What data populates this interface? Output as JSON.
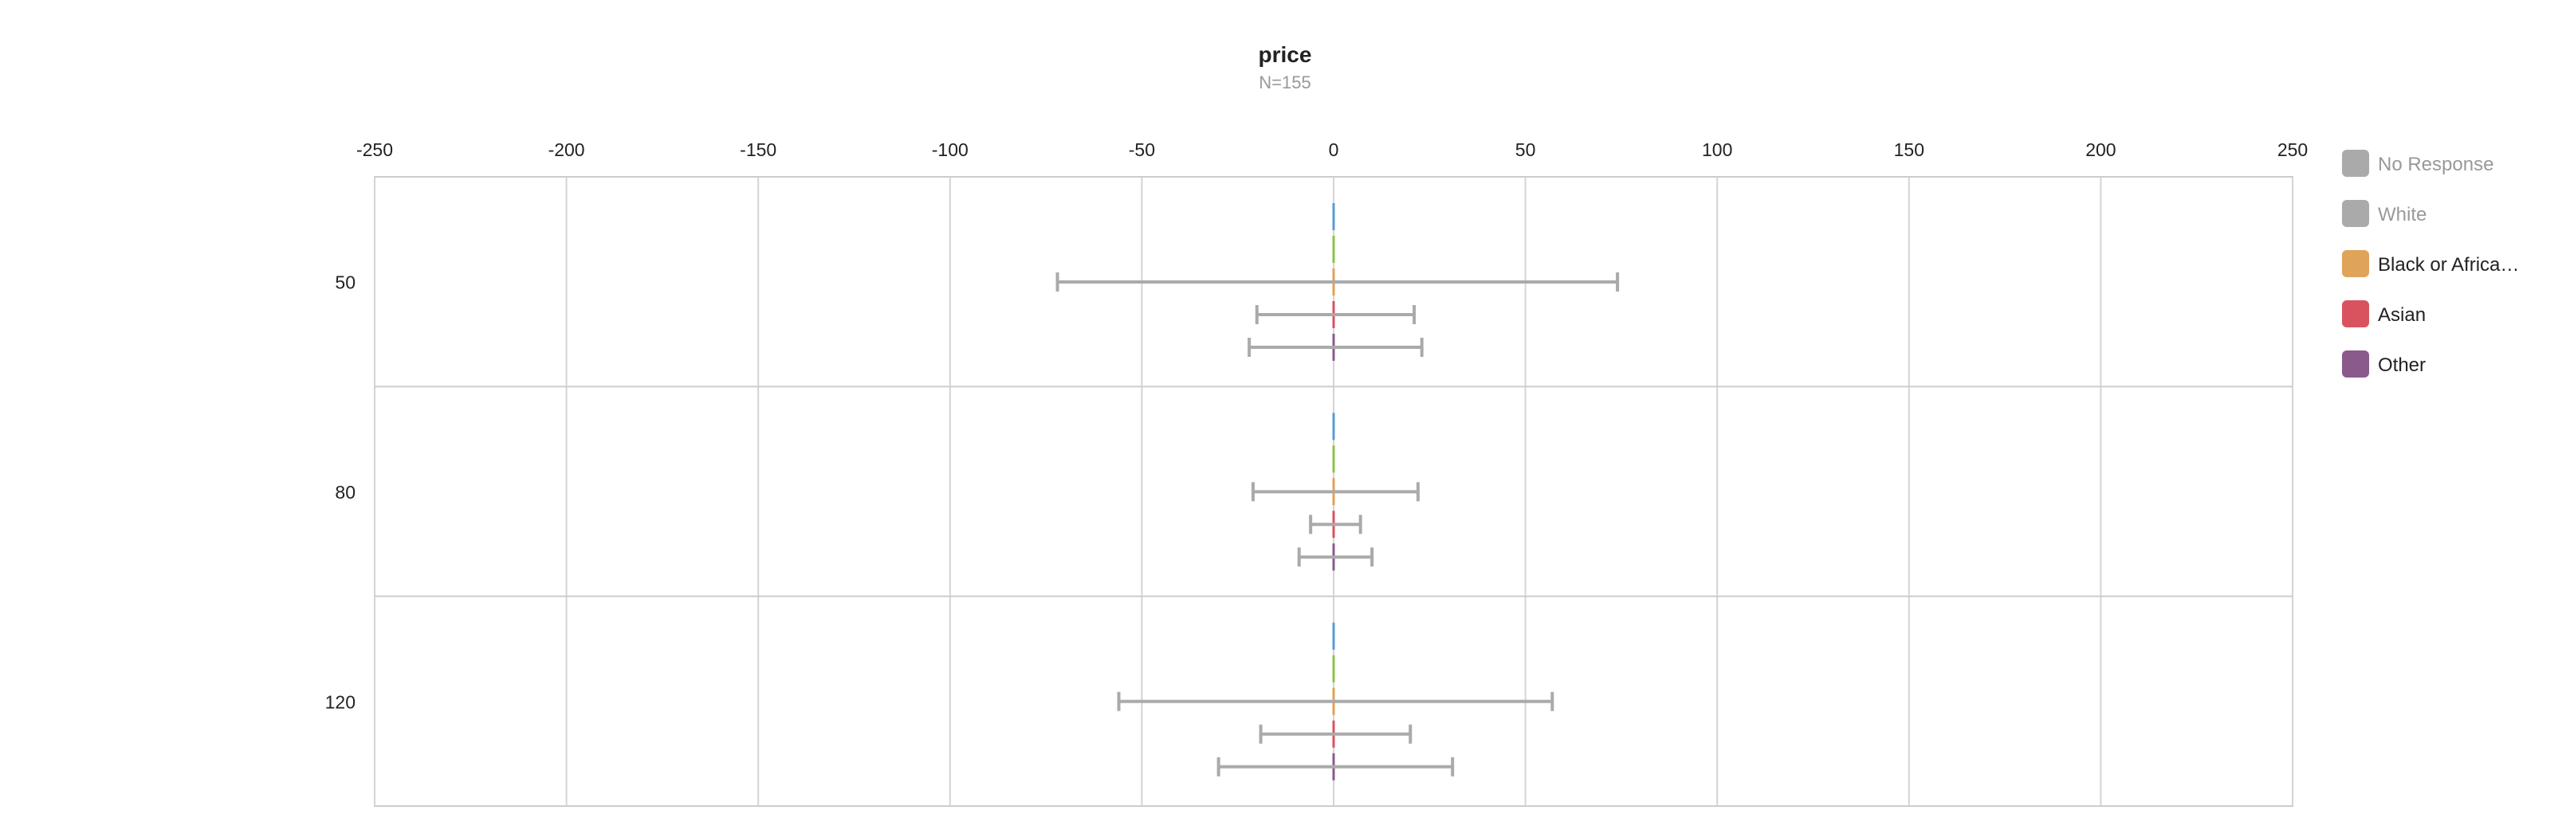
{
  "chart_data": {
    "type": "bar",
    "orientation": "horizontal",
    "error_bars": true,
    "title": "price",
    "subtitle": "N=155",
    "xlim": [
      -250,
      250
    ],
    "x_ticks": [
      "-250",
      "-200",
      "-150",
      "-100",
      "-50",
      "0",
      "50",
      "100",
      "150",
      "200",
      "250"
    ],
    "categories": [
      "50",
      "80",
      "120"
    ],
    "grid": true,
    "legend_position": "right",
    "series": [
      {
        "name": "No Response",
        "color": "#5b9bd5",
        "legend_color": "#aaaaaa",
        "legend_active": false,
        "values": [
          0,
          0,
          0
        ],
        "error_low": [
          null,
          null,
          null
        ],
        "error_high": [
          null,
          null,
          null
        ]
      },
      {
        "name": "White",
        "color": "#8bc34a",
        "legend_color": "#aaaaaa",
        "legend_active": false,
        "values": [
          0,
          0,
          0
        ],
        "error_low": [
          null,
          null,
          null
        ],
        "error_high": [
          null,
          null,
          null
        ]
      },
      {
        "name": "Black or Africa…",
        "color": "#e0a35a",
        "legend_color": "#e0a35a",
        "legend_active": true,
        "values": [
          0,
          0,
          0
        ],
        "error_low": [
          -72,
          -21,
          -56
        ],
        "error_high": [
          74,
          22,
          57
        ]
      },
      {
        "name": "Asian",
        "color": "#d9535f",
        "legend_color": "#d9535f",
        "legend_active": true,
        "values": [
          0,
          0,
          0
        ],
        "error_low": [
          -20,
          -6,
          -19
        ],
        "error_high": [
          21,
          7,
          20
        ]
      },
      {
        "name": "Other",
        "color": "#8a5a8c",
        "legend_color": "#8a5a8c",
        "legend_active": true,
        "values": [
          0,
          0,
          0
        ],
        "error_low": [
          -22,
          -9,
          -30
        ],
        "error_high": [
          23,
          10,
          31
        ]
      }
    ]
  }
}
